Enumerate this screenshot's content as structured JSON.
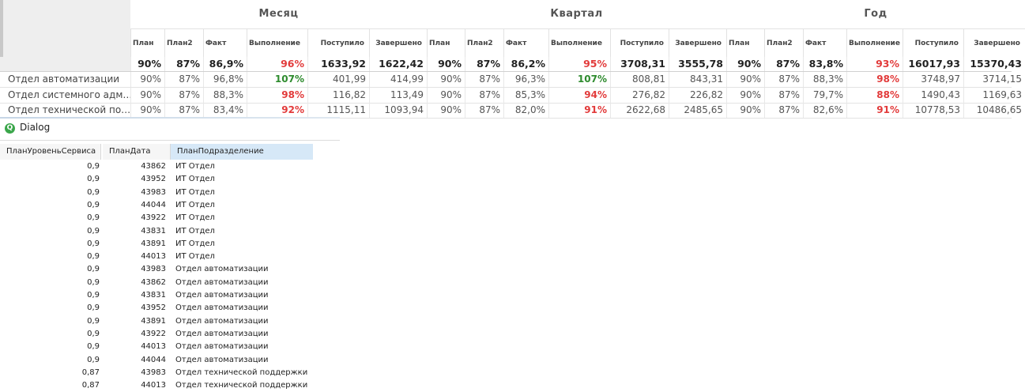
{
  "pivot": {
    "groups": [
      "Месяц",
      "Квартал",
      "Год"
    ],
    "columns": [
      "План",
      "План2",
      "Факт",
      "Выполнение",
      "Поступило",
      "Завершено"
    ],
    "total": [
      "90%",
      "87%",
      "86,9%",
      "96%",
      "1633,92",
      "1622,42",
      "90%",
      "87%",
      "86,2%",
      "95%",
      "3708,31",
      "3555,78",
      "90%",
      "87%",
      "83,8%",
      "93%",
      "16017,93",
      "15370,43"
    ],
    "rows": [
      {
        "label": "Отдел автоматизации",
        "values": [
          "90%",
          "87%",
          "96,8%",
          "107%",
          "401,99",
          "414,99",
          "90%",
          "87%",
          "96,3%",
          "107%",
          "808,81",
          "843,31",
          "90%",
          "87%",
          "88,3%",
          "98%",
          "3748,97",
          "3714,15"
        ]
      },
      {
        "label": "Отдел системного адм…",
        "values": [
          "90%",
          "87%",
          "88,3%",
          "98%",
          "116,82",
          "113,49",
          "90%",
          "87%",
          "85,3%",
          "94%",
          "276,82",
          "226,82",
          "90%",
          "87%",
          "79,7%",
          "88%",
          "1490,43",
          "1169,63"
        ]
      },
      {
        "label": "Отдел технической по…",
        "values": [
          "90%",
          "87%",
          "83,4%",
          "92%",
          "1115,11",
          "1093,94",
          "90%",
          "87%",
          "82,0%",
          "91%",
          "2622,68",
          "2485,65",
          "90%",
          "87%",
          "82,6%",
          "91%",
          "10778,53",
          "10486,65"
        ]
      }
    ],
    "colors": {
      "good": "#2e8b2e",
      "bad": "#e23b3b"
    }
  },
  "dialog": {
    "title": "Dialog",
    "icon": "qlik-logo-icon",
    "headers": [
      "ПланУровеньСервиса",
      "ПланДата",
      "ПланПодразделение"
    ],
    "rows": [
      [
        "0,9",
        "43862",
        "ИТ Отдел"
      ],
      [
        "0,9",
        "43952",
        "ИТ Отдел"
      ],
      [
        "0,9",
        "43983",
        "ИТ Отдел"
      ],
      [
        "0,9",
        "44044",
        "ИТ Отдел"
      ],
      [
        "0,9",
        "43922",
        "ИТ Отдел"
      ],
      [
        "0,9",
        "43831",
        "ИТ Отдел"
      ],
      [
        "0,9",
        "43891",
        "ИТ Отдел"
      ],
      [
        "0,9",
        "44013",
        "ИТ Отдел"
      ],
      [
        "0,9",
        "43983",
        "Отдел автоматизации"
      ],
      [
        "0,9",
        "43862",
        "Отдел автоматизации"
      ],
      [
        "0,9",
        "43831",
        "Отдел автоматизации"
      ],
      [
        "0,9",
        "43952",
        "Отдел автоматизации"
      ],
      [
        "0,9",
        "43891",
        "Отдел автоматизации"
      ],
      [
        "0,9",
        "43922",
        "Отдел автоматизации"
      ],
      [
        "0,9",
        "44013",
        "Отдел автоматизации"
      ],
      [
        "0,9",
        "44044",
        "Отдел автоматизации"
      ],
      [
        "0,87",
        "43983",
        "Отдел технической поддержки"
      ],
      [
        "0,87",
        "44013",
        "Отдел технической поддержки"
      ]
    ]
  }
}
